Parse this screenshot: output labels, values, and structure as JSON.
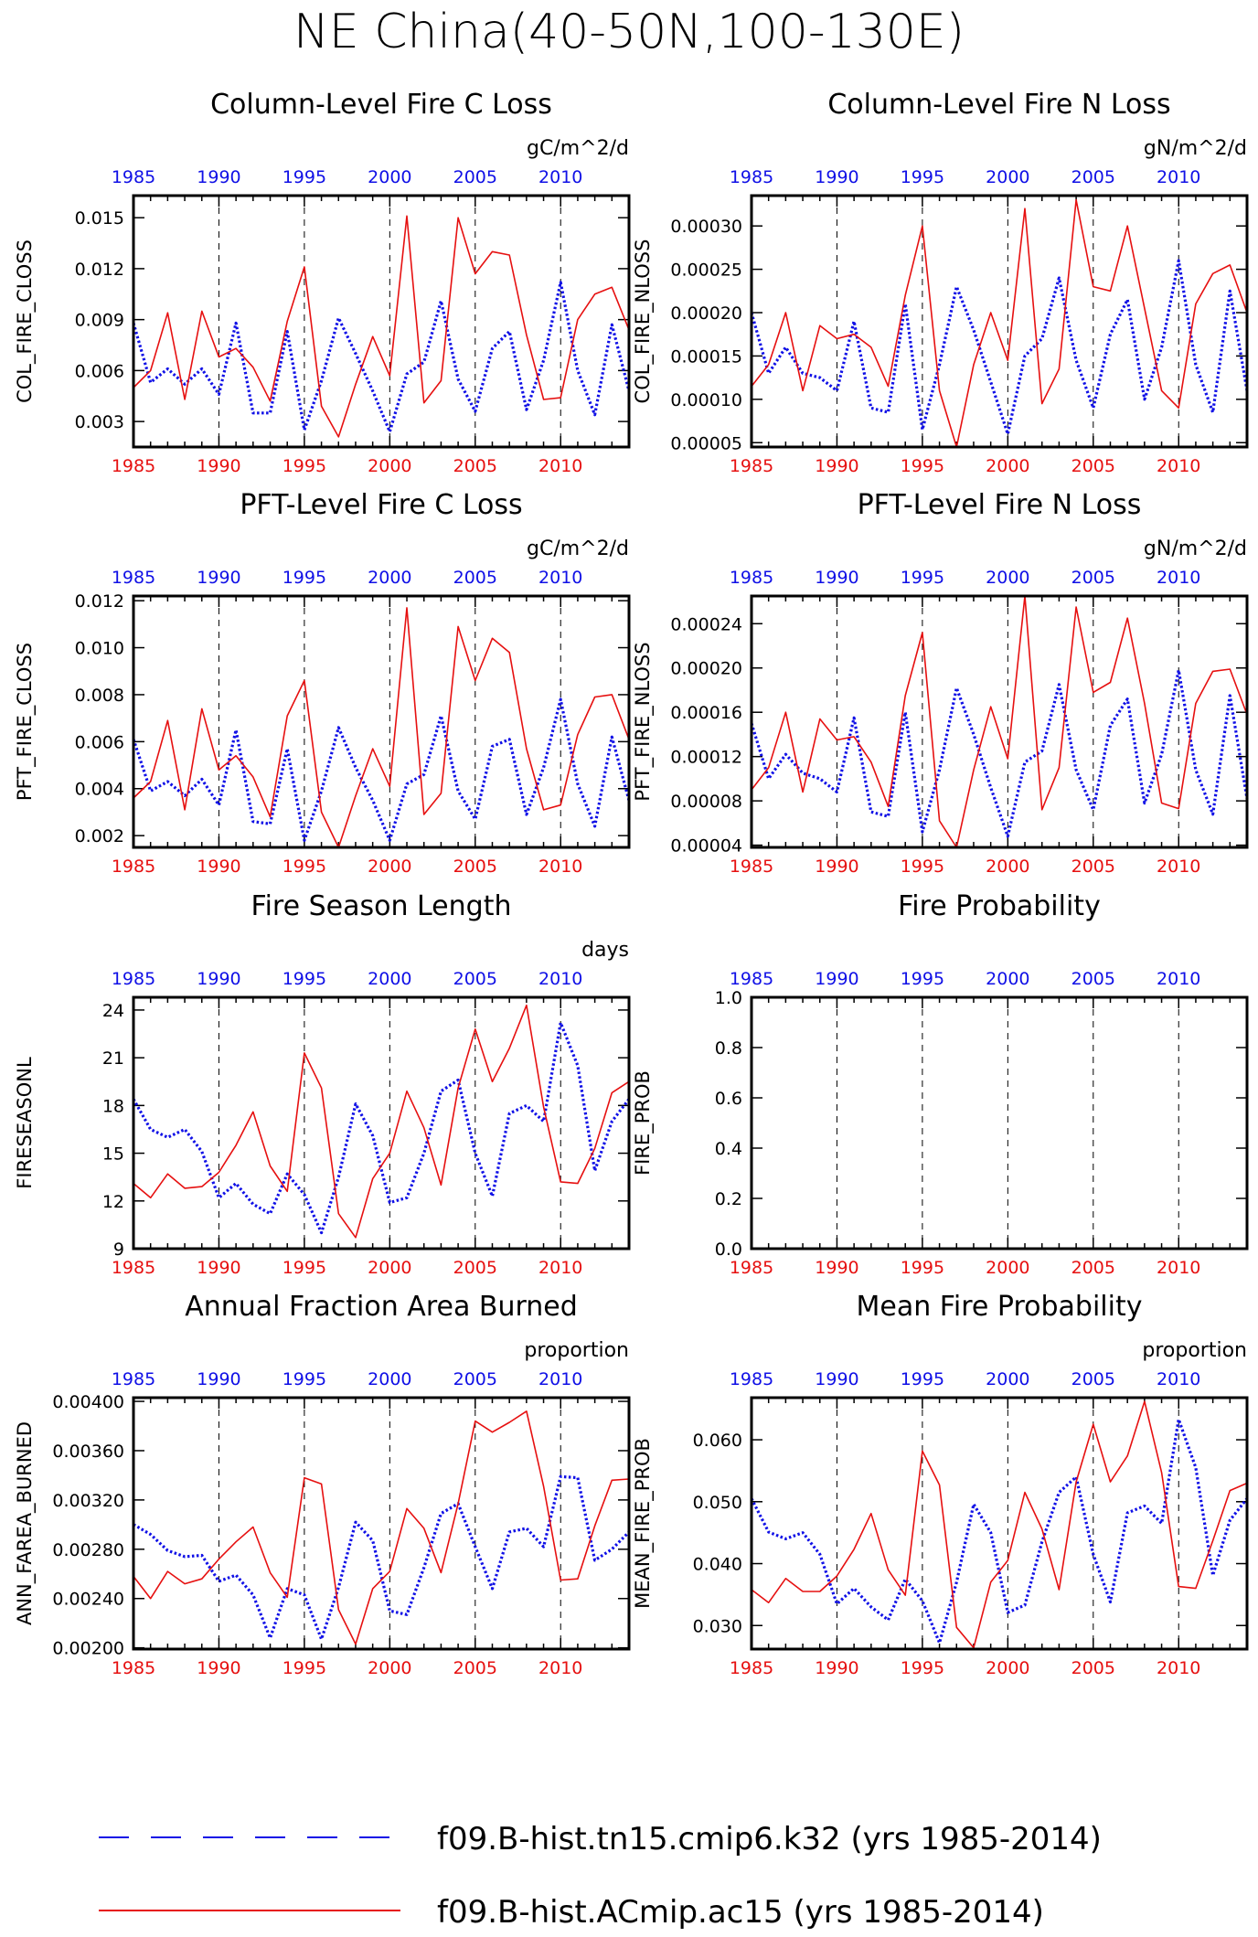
{
  "page_title": "NE China(40-50N,100-130E)",
  "colors": {
    "series_blue": "#1010e6",
    "series_red": "#e61010",
    "axis": "#000000"
  },
  "legend": [
    {
      "label": "f09.B-hist.tn15.cmip6.k32 (yrs 1985-2014)",
      "color": "#1010e6",
      "style": "dashed"
    },
    {
      "label": "f09.B-hist.ACmip.ac15 (yrs 1985-2014)",
      "color": "#e61010",
      "style": "solid"
    }
  ],
  "chart_data": [
    {
      "type": "line",
      "title": "Column-Level Fire C Loss",
      "units": "gC/m^2/d",
      "ylabel": "COL_FIRE_CLOSS",
      "xlim": [
        1985,
        2014
      ],
      "ylim": [
        0.0015,
        0.0163
      ],
      "yticks": [
        "0.003",
        "0.006",
        "0.009",
        "0.012",
        "0.015"
      ],
      "xticks": [
        1985,
        1990,
        1995,
        2000,
        2005,
        2010
      ],
      "vgrid": [
        1990,
        1995,
        2000,
        2005,
        2010
      ],
      "series": [
        {
          "color": "blue",
          "style": "dotted",
          "values": [
            0.0088,
            0.0053,
            0.0061,
            0.0052,
            0.0061,
            0.0046,
            0.0088,
            0.0035,
            0.0035,
            0.0083,
            0.0025,
            0.0054,
            0.0091,
            0.007,
            0.0048,
            0.0024,
            0.0058,
            0.0065,
            0.0101,
            0.0055,
            0.0036,
            0.0073,
            0.0083,
            0.0037,
            0.0066,
            0.0112,
            0.006,
            0.0034,
            0.0087,
            0.0048
          ]
        },
        {
          "color": "red",
          "style": "solid",
          "values": [
            0.005,
            0.006,
            0.0094,
            0.0043,
            0.0095,
            0.0068,
            0.0073,
            0.0062,
            0.0042,
            0.0089,
            0.0121,
            0.0039,
            0.0021,
            0.0052,
            0.008,
            0.0057,
            0.0151,
            0.0041,
            0.0054,
            0.015,
            0.0117,
            0.013,
            0.0128,
            0.0081,
            0.0043,
            0.0044,
            0.009,
            0.0105,
            0.0109,
            0.0084
          ]
        }
      ]
    },
    {
      "type": "line",
      "title": "Column-Level Fire N Loss",
      "units": "gN/m^2/d",
      "ylabel": "COL_FIRE_NLOSS",
      "xlim": [
        1985,
        2014
      ],
      "ylim": [
        4.5e-05,
        0.000335
      ],
      "yticks": [
        "0.00005",
        "0.00010",
        "0.00015",
        "0.00020",
        "0.00025",
        "0.00030"
      ],
      "xticks": [
        1985,
        1990,
        1995,
        2000,
        2005,
        2010
      ],
      "vgrid": [
        1990,
        1995,
        2000,
        2005,
        2010
      ],
      "series": [
        {
          "color": "blue",
          "style": "dotted",
          "values": [
            0.0002,
            0.00013,
            0.00016,
            0.00013,
            0.000125,
            0.00011,
            0.00019,
            9e-05,
            8.5e-05,
            0.00021,
            6.5e-05,
            0.00014,
            0.00023,
            0.00018,
            0.00012,
            6e-05,
            0.00015,
            0.00017,
            0.00024,
            0.000145,
            9e-05,
            0.000175,
            0.000215,
            0.0001,
            0.00016,
            0.00026,
            0.00014,
            8.5e-05,
            0.000225,
            0.00011
          ]
        },
        {
          "color": "red",
          "style": "solid",
          "values": [
            0.000115,
            0.00014,
            0.0002,
            0.00011,
            0.000185,
            0.00017,
            0.000175,
            0.00016,
            0.000115,
            0.00022,
            0.0003,
            0.00011,
            4.5e-05,
            0.00014,
            0.0002,
            0.000145,
            0.00032,
            9.5e-05,
            0.000135,
            0.00033,
            0.00023,
            0.000225,
            0.0003,
            0.000205,
            0.00011,
            9e-05,
            0.00021,
            0.000245,
            0.000255,
            0.0002
          ]
        }
      ]
    },
    {
      "type": "line",
      "title": "PFT-Level Fire C Loss",
      "units": "gC/m^2/d",
      "ylabel": "PFT_FIRE_CLOSS",
      "xlim": [
        1985,
        2014
      ],
      "ylim": [
        0.0015,
        0.0122
      ],
      "yticks": [
        "0.002",
        "0.004",
        "0.006",
        "0.008",
        "0.010",
        "0.012"
      ],
      "xticks": [
        1985,
        1990,
        1995,
        2000,
        2005,
        2010
      ],
      "vgrid": [
        1990,
        1995,
        2000,
        2005,
        2010
      ],
      "series": [
        {
          "color": "blue",
          "style": "dotted",
          "values": [
            0.0061,
            0.0039,
            0.0043,
            0.0037,
            0.0044,
            0.0033,
            0.0065,
            0.0026,
            0.0025,
            0.0057,
            0.0018,
            0.0039,
            0.0066,
            0.0049,
            0.0035,
            0.0018,
            0.0042,
            0.0046,
            0.0071,
            0.0039,
            0.0027,
            0.0058,
            0.0061,
            0.0029,
            0.0049,
            0.0078,
            0.0042,
            0.0024,
            0.0062,
            0.0035
          ]
        },
        {
          "color": "red",
          "style": "solid",
          "values": [
            0.0036,
            0.0043,
            0.0069,
            0.0031,
            0.0074,
            0.0048,
            0.0054,
            0.0045,
            0.0028,
            0.0071,
            0.0086,
            0.003,
            0.0015,
            0.0037,
            0.0057,
            0.0041,
            0.0117,
            0.0029,
            0.0038,
            0.0109,
            0.0086,
            0.0104,
            0.0098,
            0.0057,
            0.0031,
            0.0033,
            0.0063,
            0.0079,
            0.008,
            0.0061
          ]
        }
      ]
    },
    {
      "type": "line",
      "title": "PFT-Level Fire N Loss",
      "units": "gN/m^2/d",
      "ylabel": "PFT_FIRE_NLOSS",
      "xlim": [
        1985,
        2014
      ],
      "ylim": [
        3.8e-05,
        0.000265
      ],
      "yticks": [
        "0.00004",
        "0.00008",
        "0.00012",
        "0.00016",
        "0.00020",
        "0.00024"
      ],
      "xticks": [
        1985,
        1990,
        1995,
        2000,
        2005,
        2010
      ],
      "vgrid": [
        1990,
        1995,
        2000,
        2005,
        2010
      ],
      "series": [
        {
          "color": "blue",
          "style": "dotted",
          "values": [
            0.00015,
            0.0001,
            0.000122,
            0.000105,
            0.0001,
            8.8e-05,
            0.000155,
            7e-05,
            6.6e-05,
            0.00016,
            5.2e-05,
            0.000108,
            0.000182,
            0.00014,
            9.2e-05,
            4.8e-05,
            0.000115,
            0.000125,
            0.000185,
            0.000108,
            7.2e-05,
            0.000148,
            0.000172,
            7.8e-05,
            0.000122,
            0.000198,
            0.000108,
            6.8e-05,
            0.000175,
            8.2e-05
          ]
        },
        {
          "color": "red",
          "style": "solid",
          "values": [
            9e-05,
            0.00011,
            0.00016,
            8.8e-05,
            0.000154,
            0.000135,
            0.000138,
            0.000115,
            7.5e-05,
            0.000175,
            0.000232,
            6.2e-05,
            3.8e-05,
            0.000108,
            0.000165,
            0.000118,
            0.000265,
            7.2e-05,
            0.00011,
            0.000255,
            0.000178,
            0.000187,
            0.000245,
            0.000168,
            7.8e-05,
            7.3e-05,
            0.000168,
            0.000197,
            0.000199,
            0.000158
          ]
        }
      ]
    },
    {
      "type": "line",
      "title": "Fire Season Length",
      "units": "days",
      "ylabel": "FIRESEASONL",
      "xlim": [
        1985,
        2014
      ],
      "ylim": [
        9,
        24.8
      ],
      "yticks": [
        "9",
        "12",
        "15",
        "18",
        "21",
        "24"
      ],
      "xticks": [
        1985,
        1990,
        1995,
        2000,
        2005,
        2010
      ],
      "vgrid": [
        1990,
        1995,
        2000,
        2005,
        2010
      ],
      "series": [
        {
          "color": "blue",
          "style": "dotted",
          "values": [
            18.4,
            16.5,
            16.0,
            16.5,
            15.1,
            12.2,
            13.1,
            11.8,
            11.2,
            13.7,
            12.4,
            10.0,
            13.5,
            18.1,
            16.1,
            11.9,
            12.2,
            15.0,
            18.9,
            19.6,
            15.0,
            12.3,
            17.5,
            18.0,
            17.0,
            23.2,
            20.5,
            13.9,
            17.0,
            18.4
          ]
        },
        {
          "color": "red",
          "style": "solid",
          "values": [
            13.1,
            12.2,
            13.7,
            12.8,
            12.9,
            13.8,
            15.5,
            17.6,
            14.2,
            12.6,
            21.3,
            19.1,
            11.2,
            9.7,
            13.4,
            15.0,
            18.9,
            16.6,
            13.0,
            19.1,
            22.8,
            19.5,
            21.6,
            24.3,
            17.9,
            13.2,
            13.1,
            15.3,
            18.8,
            19.5
          ]
        }
      ]
    },
    {
      "type": "line",
      "title": "Fire Probability",
      "units": "",
      "ylabel": "FIRE_PROB",
      "xlim": [
        1985,
        2014
      ],
      "ylim": [
        0,
        1
      ],
      "yticks": [
        "0.0",
        "0.2",
        "0.4",
        "0.6",
        "0.8",
        "1.0"
      ],
      "xticks": [
        1985,
        1990,
        1995,
        2000,
        2005,
        2010
      ],
      "vgrid": [
        1990,
        1995,
        2000,
        2005,
        2010
      ],
      "series": []
    },
    {
      "type": "line",
      "title": "Annual Fraction Area Burned",
      "units": "proportion",
      "ylabel": "ANN_FAREA_BURNED",
      "xlim": [
        1985,
        2014
      ],
      "ylim": [
        0.00199,
        0.00403
      ],
      "yticks": [
        "0.00200",
        "0.00240",
        "0.00280",
        "0.00320",
        "0.00360",
        "0.00400"
      ],
      "xticks": [
        1985,
        1990,
        1995,
        2000,
        2005,
        2010
      ],
      "vgrid": [
        1990,
        1995,
        2000,
        2005,
        2010
      ],
      "series": [
        {
          "color": "blue",
          "style": "dotted",
          "values": [
            0.003,
            0.00292,
            0.00279,
            0.00274,
            0.00275,
            0.00254,
            0.00259,
            0.00243,
            0.00208,
            0.00248,
            0.00243,
            0.00207,
            0.00249,
            0.00302,
            0.00287,
            0.0023,
            0.00227,
            0.00265,
            0.00309,
            0.00317,
            0.00282,
            0.00248,
            0.00294,
            0.00297,
            0.00282,
            0.00339,
            0.00338,
            0.00271,
            0.0028,
            0.00294
          ]
        },
        {
          "color": "red",
          "style": "solid",
          "values": [
            0.00258,
            0.0024,
            0.00262,
            0.00252,
            0.00256,
            0.00272,
            0.00286,
            0.00298,
            0.00261,
            0.00241,
            0.00338,
            0.00333,
            0.00231,
            0.00203,
            0.00248,
            0.00262,
            0.00313,
            0.00297,
            0.00261,
            0.00317,
            0.00384,
            0.00375,
            0.00383,
            0.00392,
            0.00331,
            0.00255,
            0.00256,
            0.00299,
            0.00336,
            0.00337
          ]
        }
      ]
    },
    {
      "type": "line",
      "title": "Mean Fire Probability",
      "units": "proportion",
      "ylabel": "MEAN_FIRE_PROB",
      "xlim": [
        1985,
        2014
      ],
      "ylim": [
        0.0262,
        0.0668
      ],
      "yticks": [
        "0.030",
        "0.040",
        "0.050",
        "0.060"
      ],
      "xticks": [
        1985,
        1990,
        1995,
        2000,
        2005,
        2010
      ],
      "vgrid": [
        1990,
        1995,
        2000,
        2005,
        2010
      ],
      "series": [
        {
          "color": "blue",
          "style": "dotted",
          "values": [
            0.0505,
            0.0451,
            0.044,
            0.045,
            0.0415,
            0.0335,
            0.036,
            0.033,
            0.0309,
            0.0375,
            0.034,
            0.0272,
            0.037,
            0.0496,
            0.045,
            0.0321,
            0.0333,
            0.0435,
            0.0515,
            0.054,
            0.0415,
            0.0338,
            0.0482,
            0.0493,
            0.0465,
            0.0633,
            0.0555,
            0.0381,
            0.047,
            0.0505
          ]
        },
        {
          "color": "red",
          "style": "solid",
          "values": [
            0.0358,
            0.0337,
            0.0376,
            0.0355,
            0.0355,
            0.038,
            0.0423,
            0.0481,
            0.039,
            0.0349,
            0.0582,
            0.0527,
            0.0297,
            0.0264,
            0.037,
            0.0405,
            0.0515,
            0.0456,
            0.0358,
            0.0532,
            0.0625,
            0.0532,
            0.0574,
            0.0662,
            0.0547,
            0.0363,
            0.036,
            0.0437,
            0.0518,
            0.053
          ]
        }
      ]
    }
  ]
}
